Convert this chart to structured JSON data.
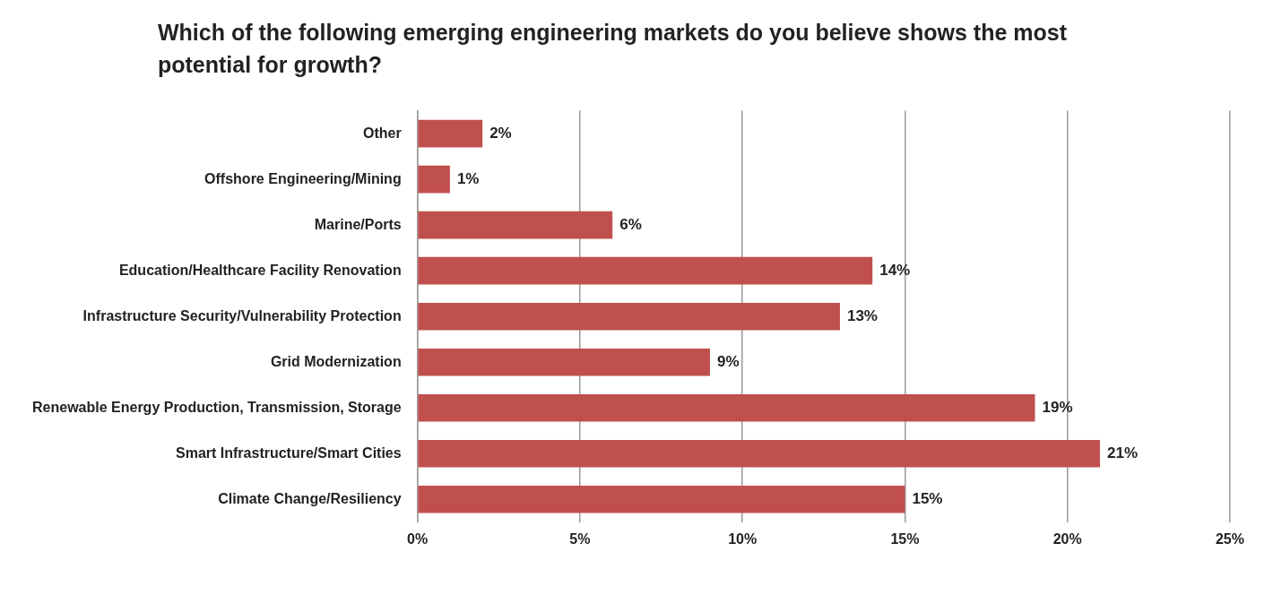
{
  "chart_data": {
    "type": "bar",
    "orientation": "horizontal",
    "title": "Which of the following emerging engineering markets do you believe shows the most potential for growth?",
    "categories": [
      "Other",
      "Offshore Engineering/Mining",
      "Marine/Ports",
      "Education/Healthcare Facility Renovation",
      "Infrastructure Security/Vulnerability Protection",
      "Grid Modernization",
      "Renewable Energy Production, Transmission, Storage",
      "Smart Infrastructure/Smart Cities",
      "Climate Change/Resiliency"
    ],
    "values": [
      2,
      1,
      6,
      14,
      13,
      9,
      19,
      21,
      15
    ],
    "value_labels": [
      "2%",
      "1%",
      "6%",
      "14%",
      "13%",
      "9%",
      "19%",
      "21%",
      "15%"
    ],
    "color": "#c0504d",
    "xlim": [
      0,
      25
    ],
    "xticks": [
      {
        "value": 0,
        "label": "0%"
      },
      {
        "value": 5,
        "label": "5%"
      },
      {
        "value": 10,
        "label": "10%"
      },
      {
        "value": 15,
        "label": "15%"
      },
      {
        "value": 20,
        "label": "20%"
      },
      {
        "value": 25,
        "label": "25%"
      }
    ],
    "grid": "x",
    "legend": false
  }
}
